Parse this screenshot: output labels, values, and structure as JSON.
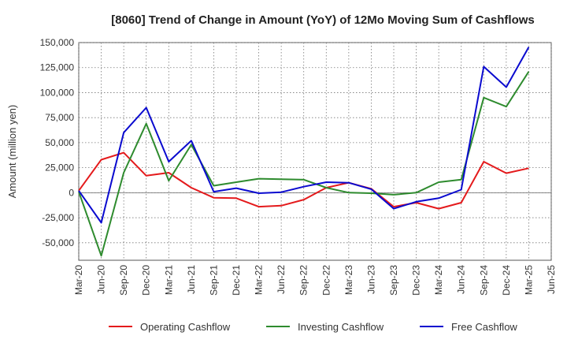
{
  "chart_data": {
    "type": "line",
    "title": "[8060]  Trend of Change in Amount (YoY) of 12Mo Moving Sum of Cashflows",
    "ylabel": "Amount (million yen)",
    "xlabel": "",
    "ylim": [
      -67500,
      150000
    ],
    "yticks": [
      150000,
      125000,
      100000,
      75000,
      50000,
      25000,
      0,
      -25000,
      -50000
    ],
    "ytick_labels": [
      "150,000",
      "125,000",
      "100,000",
      "75,000",
      "50,000",
      "25,000",
      "0",
      "-25,000",
      "-50,000"
    ],
    "categories": [
      "Mar-20",
      "Jun-20",
      "Sep-20",
      "Dec-20",
      "Mar-21",
      "Jun-21",
      "Sep-21",
      "Dec-21",
      "Mar-22",
      "Jun-22",
      "Sep-22",
      "Dec-22",
      "Mar-23",
      "Jun-23",
      "Sep-23",
      "Dec-23",
      "Mar-24",
      "Jun-24",
      "Sep-24",
      "Dec-24",
      "Mar-25",
      "Jun-25"
    ],
    "grid": true,
    "legend_position": "bottom",
    "series": [
      {
        "name": "Operating Cashflow",
        "color": "#e41a1c",
        "values": [
          2000,
          33000,
          40000,
          17000,
          20000,
          5000,
          -5000,
          -5500,
          -14000,
          -13000,
          -7000,
          5000,
          10000,
          4000,
          -14000,
          -10000,
          -16000,
          -10000,
          31000,
          19500,
          24500,
          null
        ]
      },
      {
        "name": "Investing Cashflow",
        "color": "#2e8b2e",
        "values": [
          1000,
          -63000,
          20000,
          69000,
          12000,
          48000,
          7000,
          10500,
          14000,
          13500,
          13000,
          5000,
          0,
          -500,
          -2000,
          0,
          10500,
          13000,
          95000,
          86000,
          121000,
          null
        ]
      },
      {
        "name": "Free Cashflow",
        "color": "#0a0acf",
        "values": [
          2000,
          -30000,
          60000,
          85000,
          31000,
          52000,
          1000,
          4500,
          -500,
          500,
          6000,
          10500,
          10000,
          3500,
          -16000,
          -9000,
          -5500,
          3000,
          126000,
          105500,
          145500,
          null
        ]
      }
    ]
  }
}
